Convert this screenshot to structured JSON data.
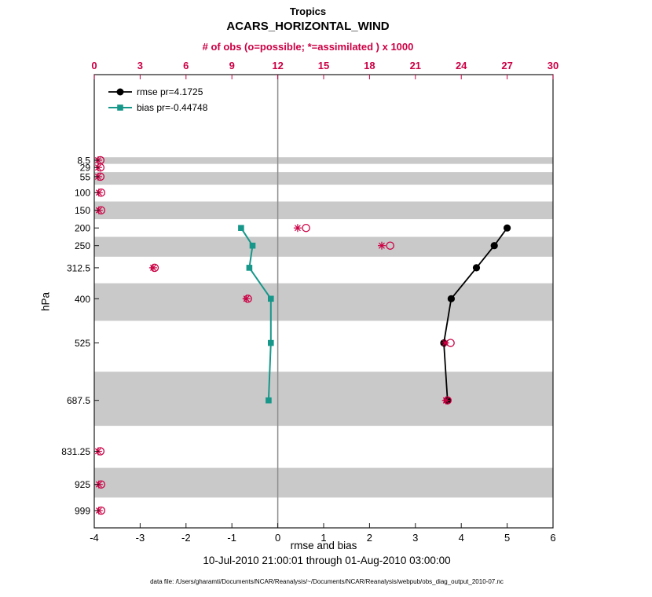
{
  "title": "Tropics",
  "subtitle": "ACARS_HORIZONTAL_WIND",
  "top_axis_label": "# of obs (o=possible; *=assimilated ) x 1000",
  "bottom_axis_label": "rmse and bias",
  "left_axis_label": "hPa",
  "footer_line": "10-Jul-2010 21:00:01 through 01-Aug-2010 03:00:00",
  "datafile_line": "data file: /Users/gharamti/Documents/NCAR/Reanalysis/~/Documents/NCAR/Reanalysis/webpub/obs_diag_output_2010-07.nc",
  "legend": {
    "rmse_label": "rmse pr=4.1725",
    "bias_label": "bias pr=-0.44748"
  },
  "colors": {
    "rmse": "#000000",
    "bias": "#16978a",
    "obs": "#cc0044",
    "band": "#c9c9c9",
    "zero_line": "#8c8c8c",
    "frame": "#1a1a1a",
    "text": "#000000"
  },
  "chart_data": {
    "type": "line",
    "title": "Tropics — ACARS_HORIZONTAL_WIND vertical profile",
    "orientation": "vertical-profile",
    "y_axis": {
      "label": "hPa",
      "scale": "linear",
      "inverted": true,
      "levels": [
        8.5,
        29,
        55,
        100,
        150,
        200,
        250,
        312.5,
        400,
        525,
        687.5,
        831.25,
        925,
        999
      ]
    },
    "x_axis_bottom": {
      "label": "rmse and bias",
      "range": [
        -4,
        6
      ],
      "ticks": [
        -4,
        -3,
        -2,
        -1,
        0,
        1,
        2,
        3,
        4,
        5,
        6
      ]
    },
    "x_axis_top": {
      "label": "# of obs (o=possible; *=assimilated ) x 1000",
      "range": [
        0,
        30
      ],
      "ticks": [
        0,
        3,
        6,
        9,
        12,
        15,
        18,
        21,
        24,
        27,
        30
      ]
    },
    "series": [
      {
        "name": "rmse",
        "axis": "bottom",
        "marker": "filled-circle",
        "levels": [
          200,
          250,
          312.5,
          400,
          525,
          687.5
        ],
        "values": [
          5.0,
          4.72,
          4.33,
          3.78,
          3.62,
          3.7
        ]
      },
      {
        "name": "bias",
        "axis": "bottom",
        "marker": "filled-square",
        "levels": [
          200,
          250,
          312.5,
          400,
          525,
          687.5
        ],
        "values": [
          -0.8,
          -0.55,
          -0.62,
          -0.15,
          -0.15,
          -0.2
        ]
      },
      {
        "name": "obs_possible_x1000",
        "axis": "top",
        "marker": "open-circle",
        "levels": [
          8.5,
          29,
          55,
          100,
          150,
          200,
          250,
          312.5,
          400,
          525,
          687.5,
          831.25,
          925,
          999
        ],
        "values": [
          0.4,
          0.4,
          0.4,
          0.45,
          0.45,
          13.85,
          19.35,
          3.95,
          10.05,
          23.3,
          23.1,
          0.4,
          0.45,
          0.45
        ]
      },
      {
        "name": "obs_assimilated_x1000",
        "axis": "top",
        "marker": "asterisk",
        "levels": [
          8.5,
          29,
          55,
          100,
          150,
          200,
          250,
          312.5,
          400,
          525,
          687.5,
          831.25,
          925,
          999
        ],
        "values": [
          0.25,
          0.25,
          0.25,
          0.3,
          0.3,
          13.3,
          18.8,
          3.85,
          9.95,
          22.95,
          23.0,
          0.25,
          0.3,
          0.3
        ]
      }
    ],
    "gray_band_levels": [
      8.5,
      55,
      150,
      250,
      400,
      687.5,
      925
    ],
    "zero_reference_line_x": 0,
    "legend_position": "top-left-inside",
    "grid": false
  }
}
